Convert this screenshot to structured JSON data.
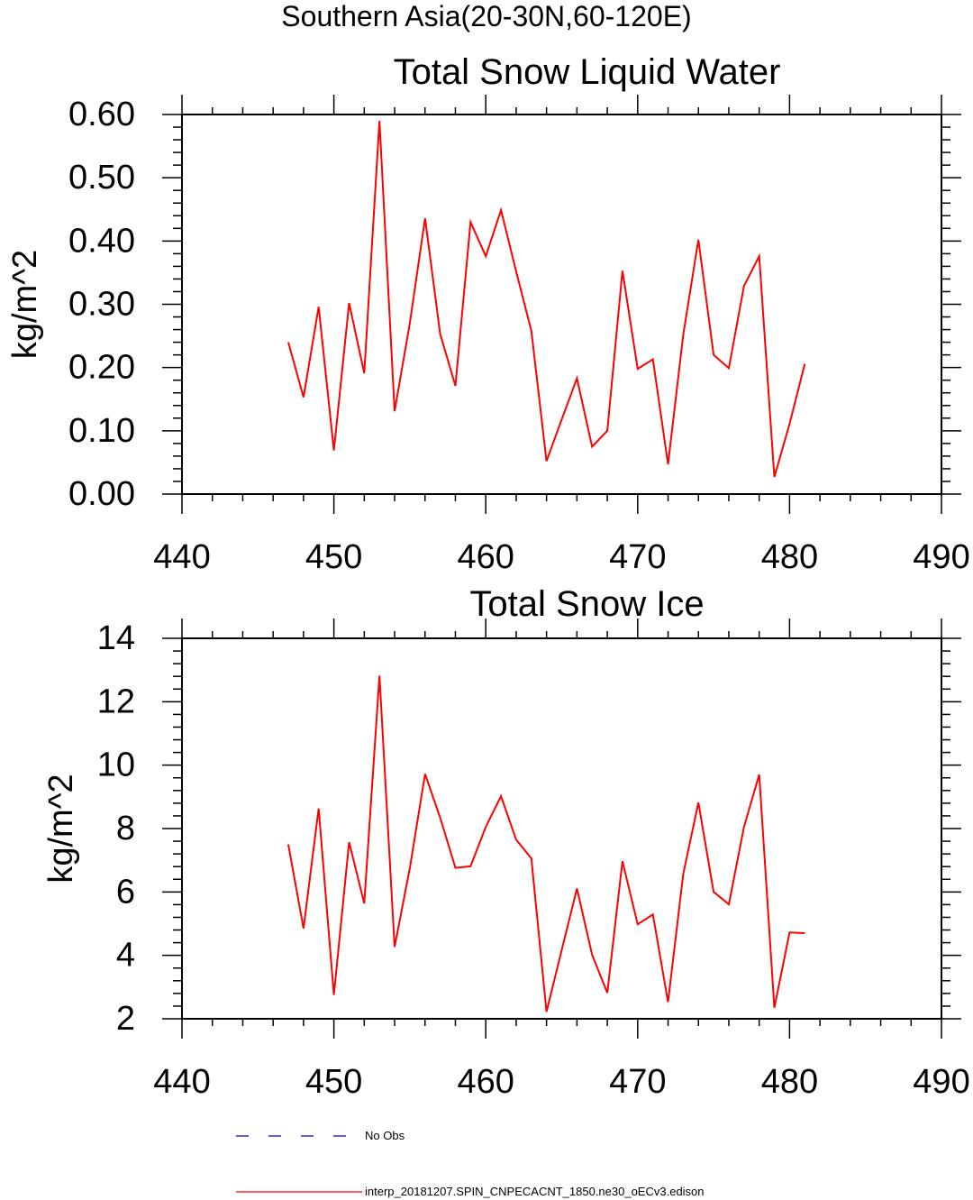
{
  "page": {
    "suptitle": "Southern Asia(20-30N,60-120E)"
  },
  "chart_data": [
    {
      "type": "line",
      "title": "Total Snow Liquid Water",
      "xlabel": "",
      "ylabel": "kg/m^2",
      "xlim": [
        440,
        490
      ],
      "ylim": [
        0,
        0.6
      ],
      "xticks": [
        440,
        450,
        460,
        470,
        480,
        490
      ],
      "xtick_labels": [
        "440",
        "450",
        "460",
        "470",
        "480",
        "490"
      ],
      "yticks": [
        0,
        0.1,
        0.2,
        0.3,
        0.4,
        0.5,
        0.6
      ],
      "ytick_labels": [
        "0.00",
        "0.10",
        "0.20",
        "0.30",
        "0.40",
        "0.50",
        "0.60"
      ],
      "grid": false,
      "series": [
        {
          "name": "interp_20181207.SPIN_CNPECACNT_1850.ne30_oECv3.edison",
          "color": "#ff0000",
          "x": [
            447,
            448,
            449,
            450,
            451,
            452,
            453,
            454,
            455,
            456,
            457,
            458,
            459,
            460,
            461,
            462,
            463,
            464,
            465,
            466,
            467,
            468,
            469,
            470,
            471,
            472,
            473,
            474,
            475,
            476,
            477,
            478,
            479,
            480,
            481
          ],
          "y": [
            0.24,
            0.153,
            0.296,
            0.069,
            0.302,
            0.191,
            0.59,
            0.131,
            0.27,
            0.436,
            0.253,
            0.171,
            0.43,
            0.376,
            0.449,
            0.352,
            0.258,
            0.052,
            0.118,
            0.183,
            0.075,
            0.1,
            0.353,
            0.198,
            0.213,
            0.047,
            0.252,
            0.402,
            0.22,
            0.199,
            0.329,
            0.376,
            0.027,
            0.111,
            0.206
          ]
        }
      ]
    },
    {
      "type": "line",
      "title": "Total Snow Ice",
      "xlabel": "",
      "ylabel": "kg/m^2",
      "xlim": [
        440,
        490
      ],
      "ylim": [
        2,
        14
      ],
      "xticks": [
        440,
        450,
        460,
        470,
        480,
        490
      ],
      "xtick_labels": [
        "440",
        "450",
        "460",
        "470",
        "480",
        "490"
      ],
      "yticks": [
        2,
        4,
        6,
        8,
        10,
        12,
        14
      ],
      "ytick_labels": [
        "2",
        "4",
        "6",
        "8",
        "10",
        "12",
        "14"
      ],
      "grid": false,
      "series": [
        {
          "name": "interp_20181207.SPIN_CNPECACNT_1850.ne30_oECv3.edison",
          "color": "#ff0000",
          "x": [
            447,
            448,
            449,
            450,
            451,
            452,
            453,
            454,
            455,
            456,
            457,
            458,
            459,
            460,
            461,
            462,
            463,
            464,
            465,
            466,
            467,
            468,
            469,
            470,
            471,
            472,
            473,
            474,
            475,
            476,
            477,
            478,
            479,
            480,
            481
          ],
          "y": [
            7.5,
            4.85,
            8.63,
            2.75,
            7.57,
            5.64,
            12.82,
            4.27,
            6.75,
            9.72,
            8.34,
            6.76,
            6.81,
            8.05,
            9.02,
            7.65,
            7.06,
            2.22,
            4.17,
            6.11,
            4.02,
            2.82,
            6.97,
            4.98,
            5.29,
            2.53,
            6.57,
            8.82,
            6.0,
            5.61,
            8.05,
            9.7,
            2.35,
            4.72,
            4.7
          ]
        }
      ]
    }
  ],
  "legend": {
    "placement": "bottom",
    "entries": [
      {
        "label": "No Obs",
        "color": "#0000cc",
        "style": "dashed"
      },
      {
        "label": "interp_20181207.SPIN_CNPECACNT_1850.ne30_oECv3.edison",
        "color": "#ff0000",
        "style": "solid"
      }
    ]
  }
}
